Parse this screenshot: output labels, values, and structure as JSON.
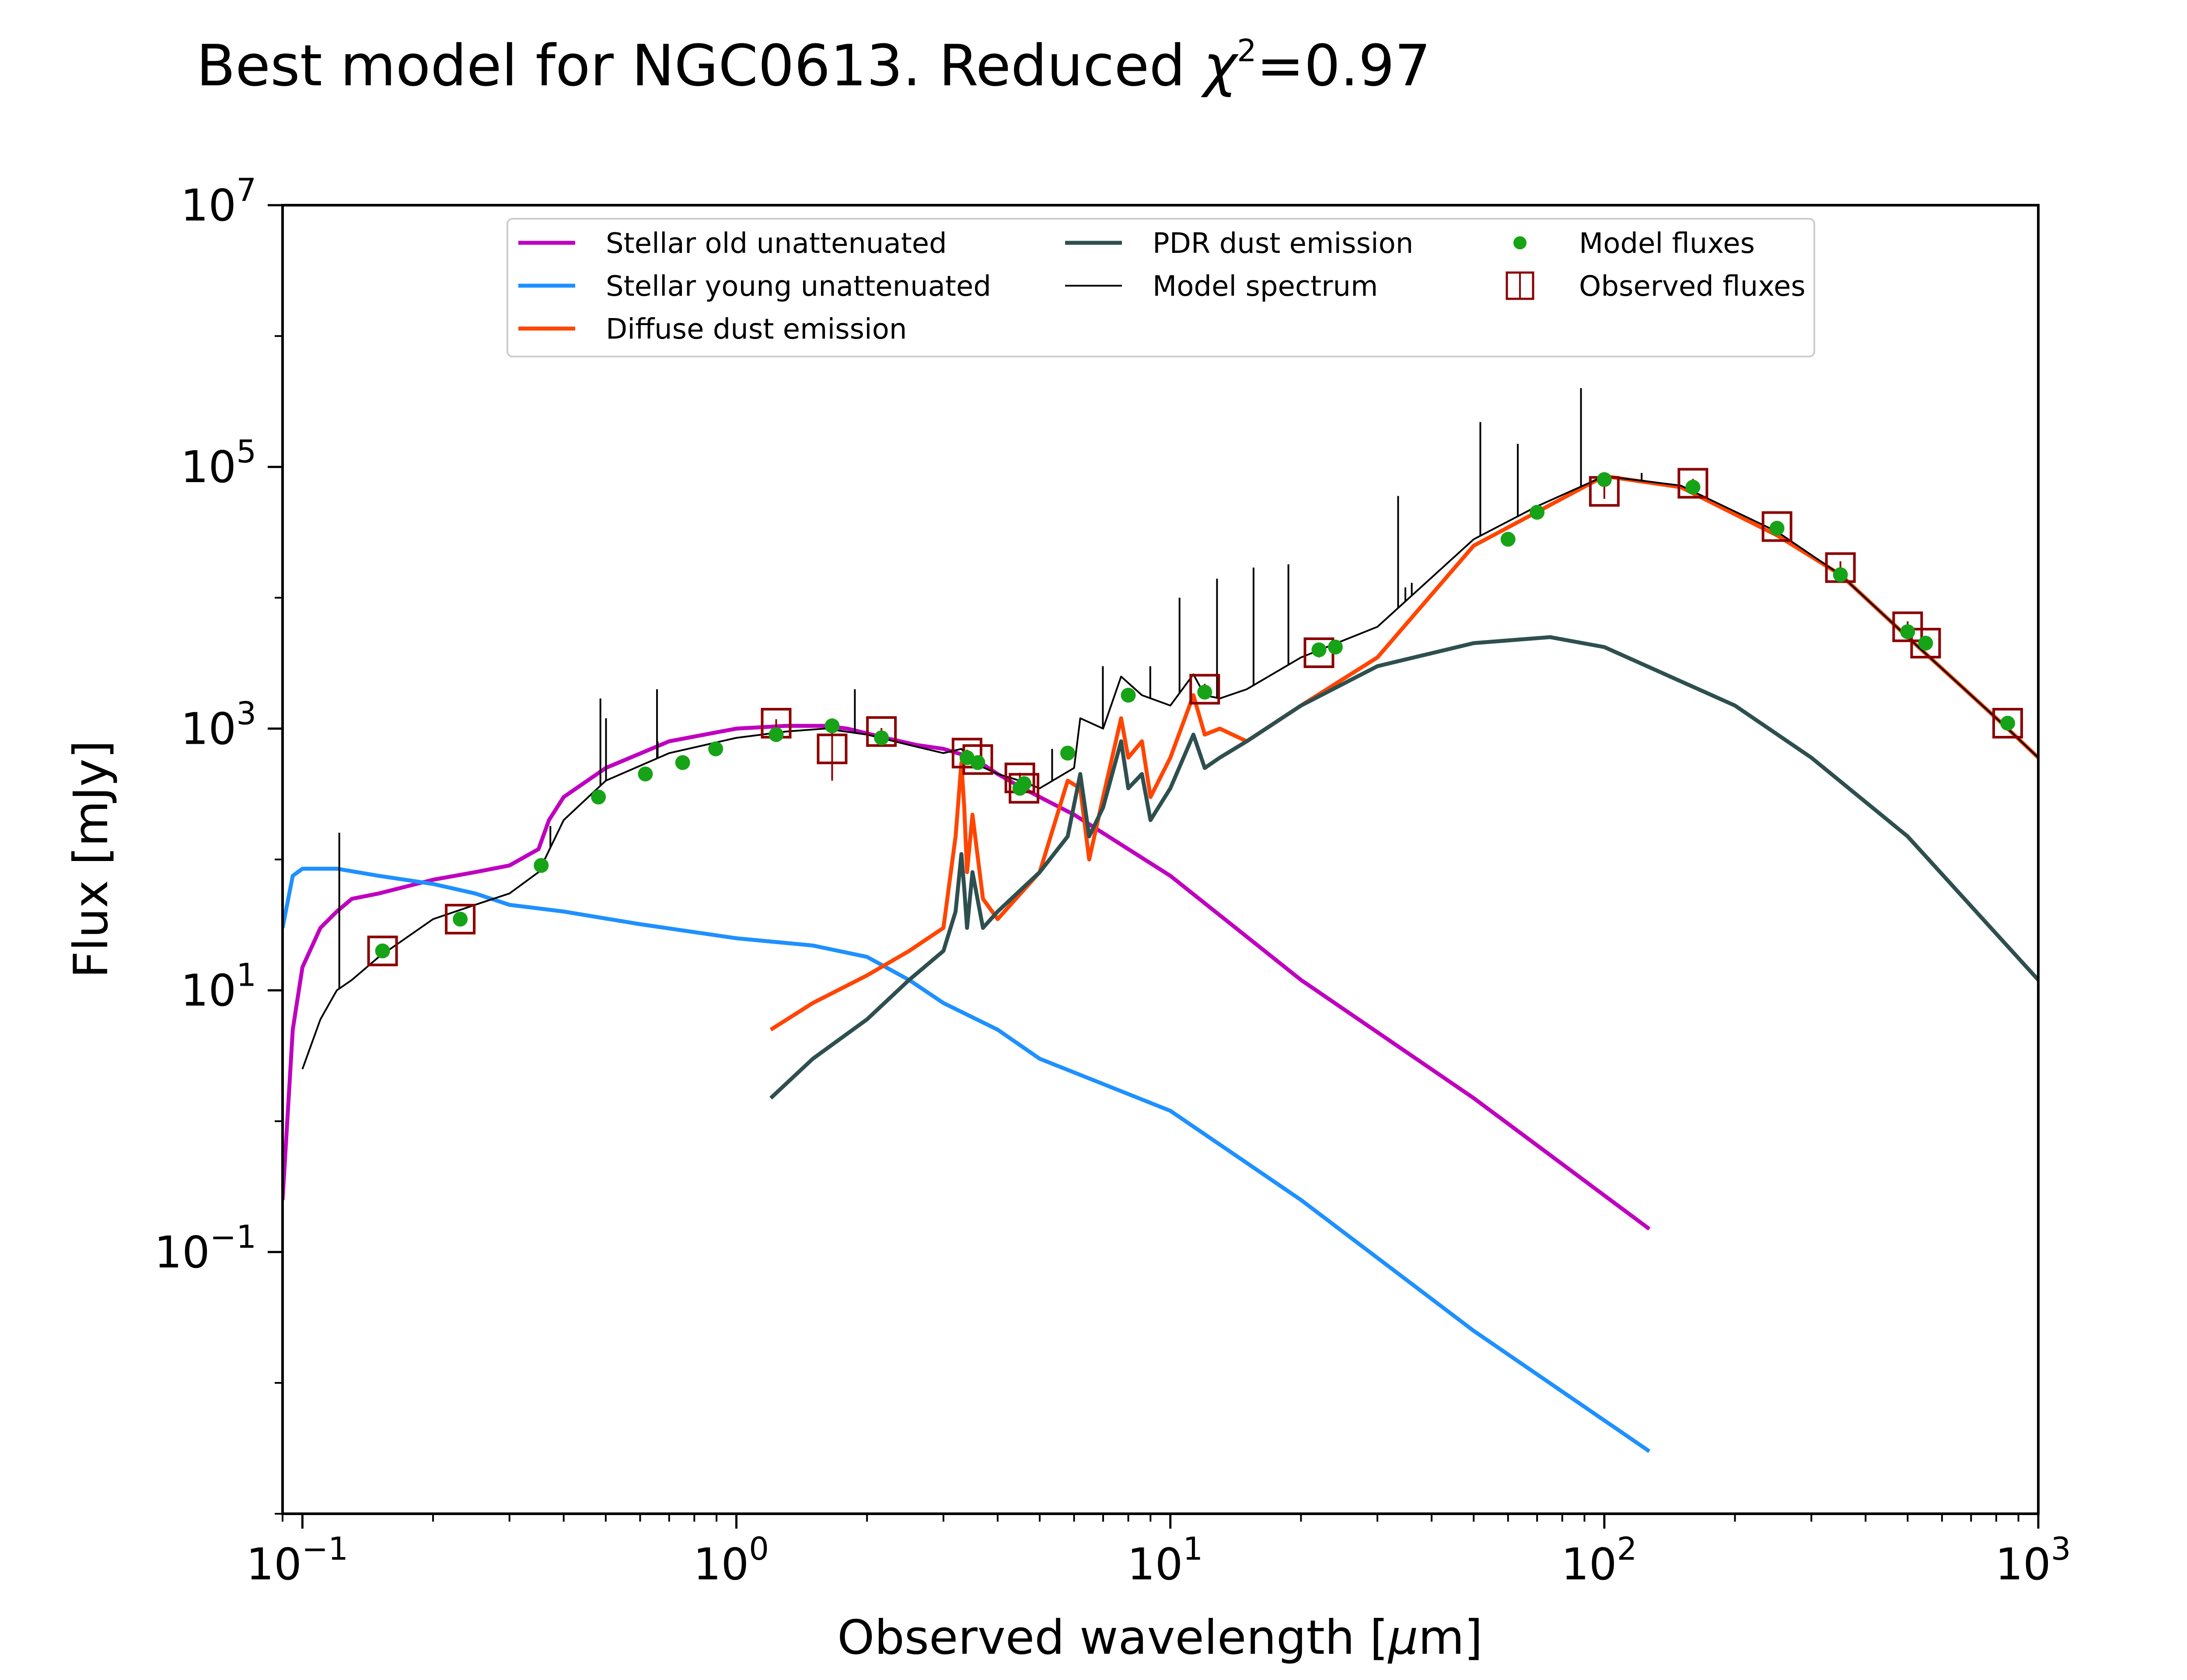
{
  "chart_data": {
    "type": "line",
    "title": "Best model for NGC0613. Reduced χ²=0.97",
    "title_parts": {
      "main": "Best model for NGC0613. Reduced ",
      "chi": "χ",
      "chi_exp": "2",
      "value": "=0.97"
    },
    "xlabel": "Observed wavelength [μm]",
    "xlabel_parts": {
      "pre": "Observed wavelength [",
      "mu": "μ",
      "post": "m]"
    },
    "ylabel": "Flux [mJy]",
    "xscale": "log",
    "yscale": "log",
    "xlim": [
      0.09,
      1000
    ],
    "ylim": [
      0.001,
      10000000
    ],
    "x_ticks": [
      {
        "base": "10",
        "exp": "−1",
        "value": 0.1
      },
      {
        "base": "10",
        "exp": "0",
        "value": 1
      },
      {
        "base": "10",
        "exp": "1",
        "value": 10
      },
      {
        "base": "10",
        "exp": "2",
        "value": 100
      },
      {
        "base": "10",
        "exp": "3",
        "value": 1000
      }
    ],
    "y_ticks": [
      {
        "base": "10",
        "exp": "−1",
        "value": 0.1
      },
      {
        "base": "10",
        "exp": "1",
        "value": 10
      },
      {
        "base": "10",
        "exp": "3",
        "value": 1000
      },
      {
        "base": "10",
        "exp": "5",
        "value": 100000
      },
      {
        "base": "10",
        "exp": "7",
        "value": 10000000
      }
    ],
    "legend_position": "upper center",
    "colors": {
      "stellar_old": "#bf00bf",
      "stellar_young": "#1e90ff",
      "diffuse_dust": "#ff4500",
      "pdr_dust": "#2f4f4f",
      "model_spectrum": "#000000",
      "model_fluxes": "#17a317",
      "observed_fluxes": "#8b0000"
    },
    "series": [
      {
        "name": "Stellar old unattenuated",
        "color": "#bf00bf",
        "x": [
          0.09,
          0.095,
          0.1,
          0.11,
          0.12,
          0.13,
          0.15,
          0.2,
          0.25,
          0.3,
          0.35,
          0.37,
          0.4,
          0.5,
          0.7,
          1.0,
          1.3,
          1.6,
          1.8,
          2.2,
          2.6,
          3.0,
          3.5,
          4.0,
          4.5,
          5.0,
          6.0,
          8.0,
          10,
          20,
          50,
          127
        ],
        "y": [
          0.25,
          5,
          15,
          30,
          40,
          50,
          55,
          70,
          80,
          90,
          120,
          200,
          300,
          500,
          800,
          1000,
          1050,
          1050,
          1000,
          850,
          750,
          700,
          600,
          450,
          360,
          300,
          220,
          120,
          75,
          12,
          1.5,
          0.15
        ]
      },
      {
        "name": "Stellar young unattenuated",
        "color": "#1e90ff",
        "x": [
          0.09,
          0.095,
          0.1,
          0.12,
          0.15,
          0.2,
          0.25,
          0.3,
          0.4,
          0.6,
          1.0,
          1.5,
          2.0,
          2.5,
          3.0,
          4.0,
          5.0,
          10,
          20,
          50,
          127
        ],
        "y": [
          30,
          75,
          85,
          85,
          75,
          65,
          55,
          45,
          40,
          32,
          25,
          22,
          18,
          12,
          8,
          5,
          3,
          1.2,
          0.25,
          0.025,
          0.003
        ]
      },
      {
        "name": "Diffuse dust emission",
        "color": "#ff4500",
        "x": [
          1.2,
          1.5,
          2.0,
          2.5,
          3.0,
          3.2,
          3.3,
          3.35,
          3.4,
          3.5,
          3.7,
          4.0,
          5.0,
          5.8,
          6.2,
          6.5,
          7.0,
          7.7,
          8.0,
          8.6,
          9.0,
          10,
          11.3,
          12,
          13,
          15,
          20,
          30,
          50,
          100,
          150,
          250,
          350,
          500,
          850,
          1000
        ],
        "y": [
          5,
          8,
          13,
          20,
          30,
          150,
          550,
          250,
          80,
          220,
          50,
          35,
          80,
          400,
          350,
          100,
          300,
          1200,
          600,
          800,
          300,
          600,
          1800,
          900,
          1000,
          800,
          1500,
          3500,
          25000,
          85000,
          70000,
          30000,
          15000,
          5000,
          1000,
          600
        ]
      },
      {
        "name": "PDR dust emission",
        "color": "#2f4f4f",
        "x": [
          1.2,
          1.5,
          2.0,
          2.5,
          3.0,
          3.2,
          3.3,
          3.35,
          3.4,
          3.5,
          3.7,
          4.0,
          5.0,
          5.8,
          6.2,
          6.5,
          7.0,
          7.7,
          8.0,
          8.6,
          9.0,
          10,
          11.3,
          12,
          13,
          15,
          20,
          30,
          50,
          75,
          100,
          200,
          300,
          500,
          1000
        ],
        "y": [
          1.5,
          3,
          6,
          12,
          20,
          40,
          110,
          60,
          30,
          80,
          30,
          40,
          80,
          150,
          450,
          150,
          250,
          800,
          350,
          450,
          200,
          350,
          900,
          500,
          600,
          800,
          1500,
          3000,
          4500,
          5000,
          4200,
          1500,
          600,
          150,
          12
        ]
      },
      {
        "name": "Model spectrum",
        "color": "#000000",
        "x": [
          0.1,
          0.11,
          0.12,
          0.13,
          0.15,
          0.2,
          0.25,
          0.3,
          0.35,
          0.4,
          0.5,
          0.7,
          1.0,
          1.3,
          1.6,
          2.0,
          2.5,
          3.0,
          3.3,
          3.5,
          4.0,
          4.5,
          5.0,
          6.0,
          6.2,
          7.0,
          7.7,
          8.6,
          10,
          11.3,
          12,
          13,
          15,
          20,
          30,
          50,
          70,
          100,
          150,
          250,
          350,
          500,
          850,
          1000
        ],
        "y": [
          2.5,
          6,
          10,
          12,
          18,
          35,
          45,
          55,
          80,
          200,
          400,
          650,
          850,
          950,
          1000,
          900,
          750,
          650,
          700,
          550,
          450,
          400,
          350,
          500,
          1200,
          1000,
          2500,
          1800,
          1500,
          2600,
          1800,
          1700,
          2000,
          3500,
          6000,
          28000,
          50000,
          85000,
          72000,
          32000,
          15000,
          5000,
          1000,
          600
        ]
      }
    ],
    "emission_lines": [
      {
        "x": 0.1216,
        "y_top": 160
      },
      {
        "x": 0.3727,
        "y_top": 180
      },
      {
        "x": 0.4861,
        "y_top": 1700
      },
      {
        "x": 0.5007,
        "y_top": 1200
      },
      {
        "x": 0.6563,
        "y_top": 2000
      },
      {
        "x": 0.6584,
        "y_top": 800
      },
      {
        "x": 1.875,
        "y_top": 2000
      },
      {
        "x": 5.34,
        "y_top": 700
      },
      {
        "x": 6.99,
        "y_top": 3000
      },
      {
        "x": 8.99,
        "y_top": 3000
      },
      {
        "x": 10.5,
        "y_top": 10000
      },
      {
        "x": 12.81,
        "y_top": 14000
      },
      {
        "x": 15.55,
        "y_top": 17000
      },
      {
        "x": 18.71,
        "y_top": 18000
      },
      {
        "x": 33.48,
        "y_top": 60000
      },
      {
        "x": 34.8,
        "y_top": 12000
      },
      {
        "x": 36.0,
        "y_top": 13000
      },
      {
        "x": 51.8,
        "y_top": 220000
      },
      {
        "x": 63.18,
        "y_top": 150000
      },
      {
        "x": 88.36,
        "y_top": 400000
      },
      {
        "x": 121.9,
        "y_top": 90000
      }
    ],
    "model_fluxes": {
      "name": "Model fluxes",
      "color": "#17a317",
      "x": [
        0.153,
        0.231,
        0.355,
        0.481,
        0.617,
        0.752,
        0.896,
        1.235,
        1.662,
        2.159,
        3.4,
        3.6,
        4.6,
        4.5,
        5.8,
        8.0,
        12.0,
        22.0,
        24.0,
        60,
        70,
        100,
        160,
        250,
        350,
        500,
        550,
        850
      ],
      "y": [
        20,
        35,
        90,
        300,
        450,
        550,
        700,
        900,
        1050,
        850,
        600,
        550,
        380,
        350,
        650,
        1800,
        1900,
        4000,
        4200,
        28000,
        45000,
        80000,
        70000,
        34000,
        15000,
        5500,
        4500,
        1100
      ]
    },
    "observed_fluxes": {
      "name": "Observed fluxes",
      "color": "#8b0000",
      "x": [
        0.153,
        0.231,
        1.235,
        1.662,
        2.159,
        3.4,
        3.6,
        4.5,
        4.6,
        12.0,
        22.0,
        100,
        160,
        250,
        350,
        500,
        550,
        850
      ],
      "y": [
        20,
        35,
        1100,
        700,
        950,
        650,
        580,
        420,
        350,
        2000,
        3800,
        65000,
        75000,
        35000,
        17000,
        6000,
        4500,
        1100
      ],
      "yerr": [
        2,
        3,
        80,
        300,
        60,
        40,
        40,
        40,
        30,
        200,
        300,
        8000,
        6000,
        2500,
        2000,
        600,
        400,
        100
      ]
    }
  }
}
